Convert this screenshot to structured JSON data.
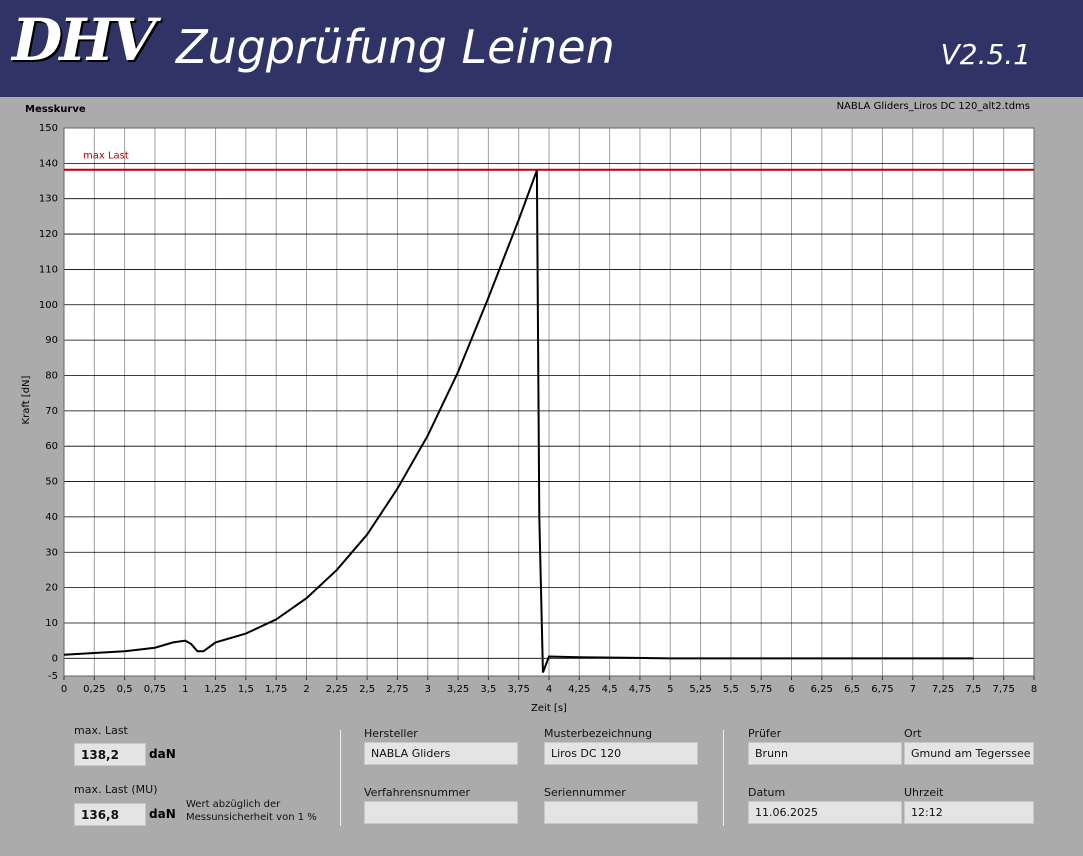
{
  "header": {
    "logo": "DHV",
    "title": "Zugprüfung Leinen",
    "version": "V2.5.1"
  },
  "chart_data": {
    "type": "line",
    "title": "Messkurve",
    "subtitle": "NABLA Gliders_Liros DC 120_alt2.tdms",
    "x_label": "Zeit [s]",
    "y_label": "Kraft [dN]",
    "color": "#000000",
    "grid": true,
    "xlim": [
      0,
      8
    ],
    "ylim": [
      -5,
      150
    ],
    "xticks": [
      0,
      {
        "value": 0.25,
        "label": "0,25"
      },
      {
        "value": 0.5,
        "label": "0,5"
      },
      {
        "value": 0.75,
        "label": "0,75"
      },
      1,
      {
        "value": 1.25,
        "label": "1,25"
      },
      {
        "value": 1.5,
        "label": "1,5"
      },
      {
        "value": 1.75,
        "label": "1,75"
      },
      2,
      {
        "value": 2.25,
        "label": "2,25"
      },
      {
        "value": 2.5,
        "label": "2,5"
      },
      {
        "value": 2.75,
        "label": "2,75"
      },
      3,
      {
        "value": 3.25,
        "label": "3,25"
      },
      {
        "value": 3.5,
        "label": "3,5"
      },
      {
        "value": 3.75,
        "label": "3,75"
      },
      4,
      {
        "value": 4.25,
        "label": "4,25"
      },
      {
        "value": 4.5,
        "label": "4,5"
      },
      {
        "value": 4.75,
        "label": "4,75"
      },
      5,
      {
        "value": 5.25,
        "label": "5,25"
      },
      {
        "value": 5.5,
        "label": "5,5"
      },
      {
        "value": 5.75,
        "label": "5,75"
      },
      6,
      {
        "value": 6.25,
        "label": "6,25"
      },
      {
        "value": 6.5,
        "label": "6,5"
      },
      {
        "value": 6.75,
        "label": "6,75"
      },
      7,
      {
        "value": 7.25,
        "label": "7,25"
      },
      {
        "value": 7.5,
        "label": "7,5"
      },
      {
        "value": 7.75,
        "label": "7,75"
      },
      8
    ],
    "yticks": [
      -5,
      0,
      10,
      20,
      30,
      40,
      50,
      60,
      70,
      80,
      90,
      100,
      110,
      120,
      130,
      140,
      150
    ],
    "x": [
      0,
      0.25,
      0.5,
      0.75,
      0.9,
      1.0,
      1.05,
      1.1,
      1.15,
      1.25,
      1.5,
      1.75,
      2,
      2.25,
      2.5,
      2.75,
      3,
      3.25,
      3.5,
      3.75,
      3.9,
      3.92,
      3.95,
      4,
      4.25,
      5,
      6,
      7,
      7.5
    ],
    "values": [
      1,
      1.5,
      2,
      3,
      4.5,
      5,
      4,
      2,
      2,
      4.5,
      7,
      11,
      17,
      25,
      35,
      48,
      63,
      81,
      102,
      124,
      138,
      40,
      -4,
      0.5,
      0.3,
      0,
      0,
      0,
      0
    ],
    "annotations": [
      {
        "text": "max Last",
        "value": 138.2,
        "color": "#c00000"
      }
    ]
  },
  "results": {
    "max_last": {
      "label": "max. Last",
      "value": "138,2",
      "unit": "daN"
    },
    "max_last_mu": {
      "label": "max. Last (MU)",
      "value": "136,8",
      "unit": "daN",
      "note": [
        "Wert abzüglich der",
        "Messunsicherheit von 1 %"
      ]
    }
  },
  "fields": [
    {
      "label": "Hersteller",
      "value": "NABLA Gliders"
    },
    {
      "label": "Musterbezeichnung",
      "value": "Liros DC 120"
    },
    {
      "label": "Verfahrensnummer"
    },
    {
      "label": "Seriennummer"
    },
    {
      "label": "Prüfer",
      "value": "Brunn"
    },
    {
      "label": "Ort",
      "value": "Gmund am Tegerssee"
    },
    {
      "label": "Datum",
      "value": "11.06.2025"
    },
    {
      "label": "Uhrzeit",
      "value": "12:12"
    }
  ]
}
